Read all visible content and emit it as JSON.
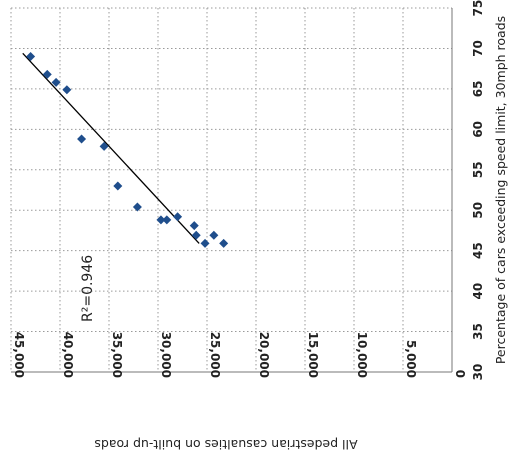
{
  "chart_data": {
    "type": "scatter",
    "title": "",
    "xlabel": "All pedestrian casualties on built-up roads",
    "ylabel": "Percentage of cars exceeding speed limit, 30mph roads",
    "xlim": [
      45000,
      0
    ],
    "ylim": [
      30,
      75
    ],
    "x_ticks": [
      45000,
      40000,
      35000,
      30000,
      25000,
      20000,
      15000,
      10000,
      5000,
      0
    ],
    "x_tick_labels": [
      "45,000",
      "40,000",
      "35,000",
      "30,000",
      "25,000",
      "20,000",
      "15,000",
      "10,000",
      "5,000",
      "0"
    ],
    "y_ticks": [
      30,
      35,
      40,
      45,
      50,
      55,
      60,
      65,
      70,
      75
    ],
    "y_tick_labels": [
      "30",
      "35",
      "40",
      "45",
      "50",
      "55",
      "60",
      "65",
      "70",
      "75"
    ],
    "grid": true,
    "orientation": "rotated-90-clockwise",
    "marker_color": "#1f4e8c",
    "trendline_color": "#000000",
    "annotation": "R²=0.946",
    "trendline": {
      "x": [
        43800,
        25800
      ],
      "y": [
        69.4,
        45.9
      ]
    },
    "points": [
      {
        "x": 43000,
        "y": 69.0
      },
      {
        "x": 41300,
        "y": 66.8
      },
      {
        "x": 40400,
        "y": 65.8
      },
      {
        "x": 39300,
        "y": 64.9
      },
      {
        "x": 37800,
        "y": 58.8
      },
      {
        "x": 35500,
        "y": 57.9
      },
      {
        "x": 34100,
        "y": 53.0
      },
      {
        "x": 32100,
        "y": 50.4
      },
      {
        "x": 29700,
        "y": 48.8
      },
      {
        "x": 29100,
        "y": 48.8
      },
      {
        "x": 28000,
        "y": 49.2
      },
      {
        "x": 26300,
        "y": 48.1
      },
      {
        "x": 26100,
        "y": 46.9
      },
      {
        "x": 25200,
        "y": 45.9
      },
      {
        "x": 24300,
        "y": 46.9
      },
      {
        "x": 23300,
        "y": 45.9
      }
    ]
  }
}
